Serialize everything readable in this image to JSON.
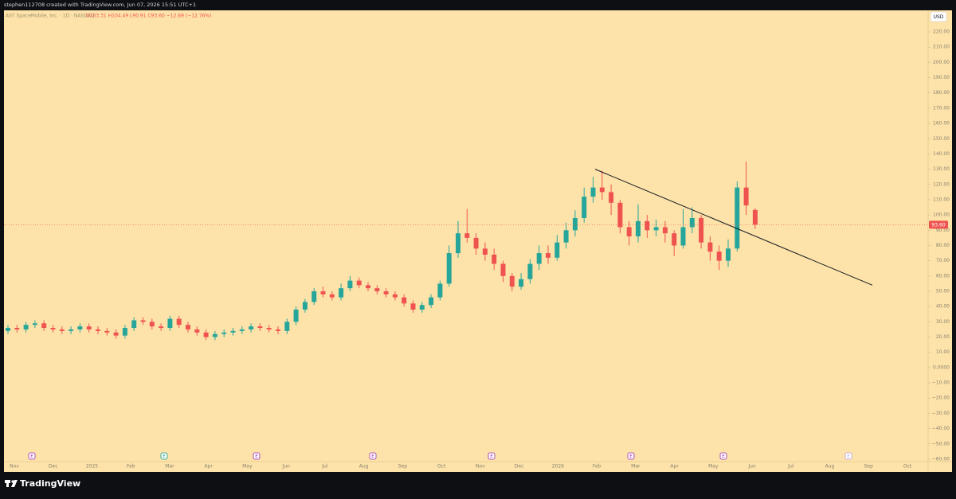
{
  "header": {
    "credit": "stephen112708 created with TradingView.com, Jun 07, 2026 15:51 UTC+1",
    "currency": "USD",
    "brand": "TradingView"
  },
  "chart_data": {
    "type": "candlestick",
    "legend": {
      "symbol": "AST SpaceMobile, Inc. · 1D · NASDAQ",
      "ohlc": "O103.31 H104.49 L90.91 C93.60 −12.69 (−12.76%)"
    },
    "categories": [
      "Nov",
      "Dec",
      "2025",
      "Feb",
      "Mar",
      "Apr",
      "May",
      "Jun",
      "Jul",
      "Aug",
      "Sep",
      "Oct",
      "Nov",
      "Dec",
      "2026",
      "Feb",
      "Mar",
      "Apr",
      "May",
      "Jun",
      "Jul",
      "Aug",
      "Sep",
      "Oct"
    ],
    "open": [
      24,
      26,
      25,
      28,
      29,
      26,
      25,
      24,
      25,
      27,
      25,
      24,
      23,
      21,
      26,
      31,
      30,
      27,
      26,
      32,
      28,
      25,
      23,
      20,
      22,
      23,
      24,
      25,
      27,
      26,
      25,
      24,
      30,
      38,
      43,
      50,
      48,
      46,
      52,
      57,
      54,
      52,
      50,
      48,
      46,
      42,
      38,
      41,
      46,
      55,
      75,
      88,
      85,
      78,
      74,
      68,
      60,
      53,
      58,
      68,
      75,
      72,
      82,
      90,
      98,
      112,
      118,
      115,
      108,
      92,
      86,
      96,
      90,
      92,
      88,
      80,
      92,
      98,
      82,
      76,
      70,
      78,
      118,
      103.31
    ],
    "high": [
      28,
      28,
      30,
      31,
      31,
      28,
      27,
      27,
      29,
      29,
      27,
      26,
      25,
      28,
      33,
      33,
      32,
      29,
      34,
      34,
      30,
      27,
      25,
      24,
      25,
      26,
      27,
      29,
      29,
      28,
      27,
      32,
      40,
      45,
      52,
      53,
      50,
      55,
      60,
      59,
      56,
      54,
      52,
      50,
      48,
      44,
      43,
      48,
      57,
      80,
      96,
      104,
      88,
      82,
      78,
      70,
      62,
      62,
      71,
      80,
      80,
      87,
      95,
      103,
      118,
      125,
      129,
      120,
      110,
      96,
      107,
      100,
      97,
      96,
      90,
      104,
      105,
      100,
      86,
      80,
      84,
      122,
      135,
      104.49
    ],
    "low": [
      22,
      23,
      23,
      26,
      24,
      23,
      22,
      22,
      23,
      23,
      22,
      21,
      19,
      19,
      24,
      28,
      25,
      24,
      24,
      26,
      23,
      21,
      18,
      18,
      20,
      21,
      22,
      23,
      24,
      23,
      22,
      22,
      28,
      36,
      41,
      46,
      44,
      44,
      50,
      52,
      50,
      48,
      46,
      44,
      40,
      36,
      36,
      39,
      44,
      53,
      72,
      82,
      74,
      70,
      64,
      56,
      50,
      51,
      55,
      64,
      68,
      70,
      78,
      86,
      95,
      108,
      110,
      100,
      88,
      80,
      82,
      85,
      86,
      82,
      73,
      78,
      88,
      78,
      70,
      64,
      66,
      76,
      100,
      90.91
    ],
    "close": [
      26,
      25,
      28,
      29,
      26,
      25,
      24,
      25,
      27,
      25,
      24,
      23,
      21,
      26,
      31,
      30,
      27,
      26,
      32,
      28,
      25,
      23,
      20,
      22,
      23,
      24,
      25,
      27,
      26,
      25,
      24,
      30,
      38,
      43,
      50,
      48,
      46,
      52,
      57,
      54,
      52,
      50,
      48,
      46,
      42,
      38,
      41,
      46,
      55,
      75,
      88,
      85,
      78,
      74,
      68,
      60,
      53,
      58,
      68,
      75,
      72,
      82,
      90,
      98,
      112,
      118,
      115,
      108,
      92,
      86,
      96,
      90,
      92,
      88,
      80,
      92,
      98,
      82,
      76,
      70,
      78,
      118,
      106.29,
      93.6
    ],
    "up_color": "#26a69a",
    "down_color": "#ef5350",
    "ylim": [
      -61.6,
      234.1
    ],
    "yticks": [
      {
        "value": 220,
        "label": "220.00"
      },
      {
        "value": 210,
        "label": "210.00"
      },
      {
        "value": 200,
        "label": "200.00"
      },
      {
        "value": 190,
        "label": "190.00"
      },
      {
        "value": 180,
        "label": "180.00"
      },
      {
        "value": 170,
        "label": "170.00"
      },
      {
        "value": 160,
        "label": "160.00"
      },
      {
        "value": 150,
        "label": "150.00"
      },
      {
        "value": 140,
        "label": "140.00"
      },
      {
        "value": 130,
        "label": "130.00"
      },
      {
        "value": 120,
        "label": "120.00"
      },
      {
        "value": 110,
        "label": "110.00"
      },
      {
        "value": 100,
        "label": "100.00"
      },
      {
        "value": 90,
        "label": "90.00"
      },
      {
        "value": 80,
        "label": "80.00"
      },
      {
        "value": 70,
        "label": "70.00"
      },
      {
        "value": 60,
        "label": "60.00"
      },
      {
        "value": 50,
        "label": "50.00"
      },
      {
        "value": 40,
        "label": "40.00"
      },
      {
        "value": 30,
        "label": "30.00"
      },
      {
        "value": 20,
        "label": "20.00"
      },
      {
        "value": 10,
        "label": "10.00"
      },
      {
        "value": 0,
        "label": "0.0000"
      },
      {
        "value": -10,
        "label": "−10.00"
      },
      {
        "value": -20,
        "label": "−20.00"
      },
      {
        "value": -30,
        "label": "−30.00"
      },
      {
        "value": -40,
        "label": "−40.00"
      },
      {
        "value": -50,
        "label": "−50.00"
      },
      {
        "value": -60,
        "label": "−60.00"
      }
    ],
    "last_price": {
      "value": 93.6,
      "label": "93.60"
    },
    "trendline": {
      "start": 130,
      "end": 54
    },
    "event_label": "E"
  }
}
